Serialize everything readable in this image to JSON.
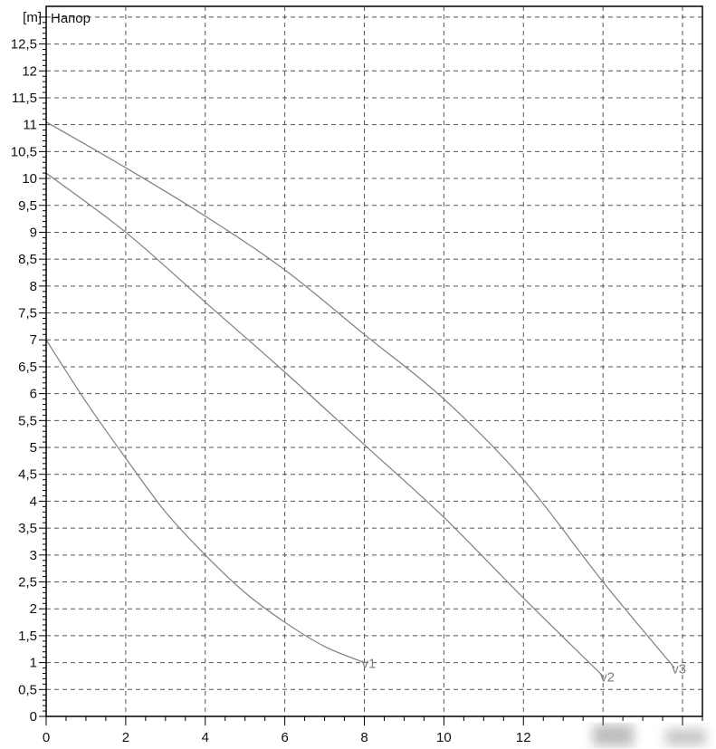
{
  "chart_data": {
    "type": "line",
    "title": "Напор",
    "ylabel": "[m]",
    "xlabel": "",
    "xlim": [
      0,
      16.5
    ],
    "ylim": [
      0,
      13.2
    ],
    "grid": true,
    "x_ticks": [
      "0",
      "2",
      "4",
      "6",
      "8",
      "10",
      "12"
    ],
    "x_tick_values": [
      0,
      2,
      4,
      6,
      8,
      10,
      12
    ],
    "y_ticks": [
      "0",
      "0,5",
      "1",
      "1,5",
      "2",
      "2,5",
      "3",
      "3,5",
      "4",
      "4,5",
      "5",
      "5,5",
      "6",
      "6,5",
      "7",
      "7,5",
      "8",
      "8,5",
      "9",
      "9,5",
      "10",
      "10,5",
      "11",
      "11,5",
      "12",
      "12,5"
    ],
    "y_tick_values": [
      0,
      0.5,
      1,
      1.5,
      2,
      2.5,
      3,
      3.5,
      4,
      4.5,
      5,
      5.5,
      6,
      6.5,
      7,
      7.5,
      8,
      8.5,
      9,
      9.5,
      10,
      10.5,
      11,
      11.5,
      12,
      12.5
    ],
    "series": [
      {
        "name": "v1",
        "x": [
          0,
          1,
          2,
          3,
          4,
          5,
          6,
          7,
          8
        ],
        "y": [
          7.0,
          5.85,
          4.8,
          3.8,
          3.0,
          2.3,
          1.75,
          1.3,
          1.0
        ]
      },
      {
        "name": "v2",
        "x": [
          0,
          2,
          4,
          6,
          8,
          10,
          12,
          14
        ],
        "y": [
          10.1,
          9.0,
          7.7,
          6.4,
          5.05,
          3.7,
          2.2,
          0.75
        ]
      },
      {
        "name": "v3",
        "x": [
          0,
          2,
          4,
          6,
          8,
          10,
          12,
          14,
          15.8
        ],
        "y": [
          11.05,
          10.2,
          9.3,
          8.3,
          7.1,
          5.9,
          4.4,
          2.5,
          0.9
        ]
      }
    ],
    "colors": {
      "curve": "#8a7a7a",
      "grid": "#555555",
      "axis": "#000000"
    }
  }
}
